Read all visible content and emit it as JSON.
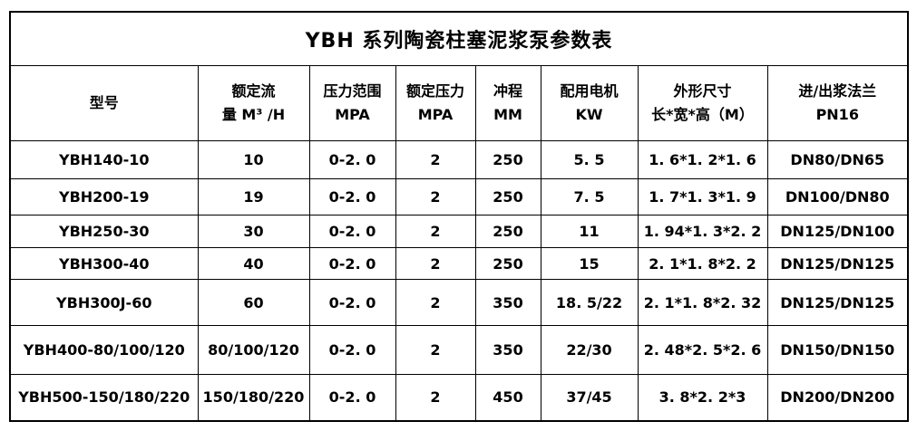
{
  "title": "YBH 系列陶瓷柱塞泥浆泵参数表",
  "table": {
    "columns": [
      {
        "id": "model",
        "lines": [
          "型号"
        ]
      },
      {
        "id": "rated-flow",
        "lines": [
          "额定流",
          "量 M³ /H"
        ]
      },
      {
        "id": "pressure-range",
        "lines": [
          "压力范围",
          "MPA"
        ]
      },
      {
        "id": "rated-pressure",
        "lines": [
          "额定压力",
          "MPA"
        ]
      },
      {
        "id": "stroke",
        "lines": [
          "冲程",
          "MM"
        ]
      },
      {
        "id": "motor-power",
        "lines": [
          "配用电机",
          "KW"
        ]
      },
      {
        "id": "dimensions",
        "lines": [
          "外形尺寸",
          "长*宽*高（M）"
        ]
      },
      {
        "id": "flange",
        "lines": [
          "进/出浆法兰",
          "PN16"
        ]
      }
    ],
    "rows": [
      [
        "YBH140-10",
        "10",
        "0-2. 0",
        "2",
        "250",
        "5. 5",
        "1. 6*1. 2*1. 6",
        "DN80/DN65"
      ],
      [
        "YBH200-19",
        "19",
        "0-2. 0",
        "2",
        "250",
        "7. 5",
        "1. 7*1. 3*1. 9",
        "DN100/DN80"
      ],
      [
        "YBH250-30",
        "30",
        "0-2. 0",
        "2",
        "250",
        "11",
        "1. 94*1. 3*2. 2",
        "DN125/DN100"
      ],
      [
        "YBH300-40",
        "40",
        "0-2. 0",
        "2",
        "250",
        "15",
        "2. 1*1. 8*2. 2",
        "DN125/DN125"
      ],
      [
        "YBH300J-60",
        "60",
        "0-2. 0",
        "2",
        "350",
        "18. 5/22",
        "2. 1*1. 8*2. 32",
        "DN125/DN125"
      ],
      [
        "YBH400-80/100/120",
        "80/100/120",
        "0-2. 0",
        "2",
        "350",
        "22/30",
        "2. 48*2. 5*2. 6",
        "DN150/DN150"
      ],
      [
        "YBH500-150/180/220",
        "150/180/220",
        "0-2. 0",
        "2",
        "450",
        "37/45",
        "3. 8*2. 2*3",
        "DN200/DN200"
      ]
    ]
  },
  "colors": {
    "border": "#000000",
    "text": "#000000",
    "background": "#ffffff"
  }
}
